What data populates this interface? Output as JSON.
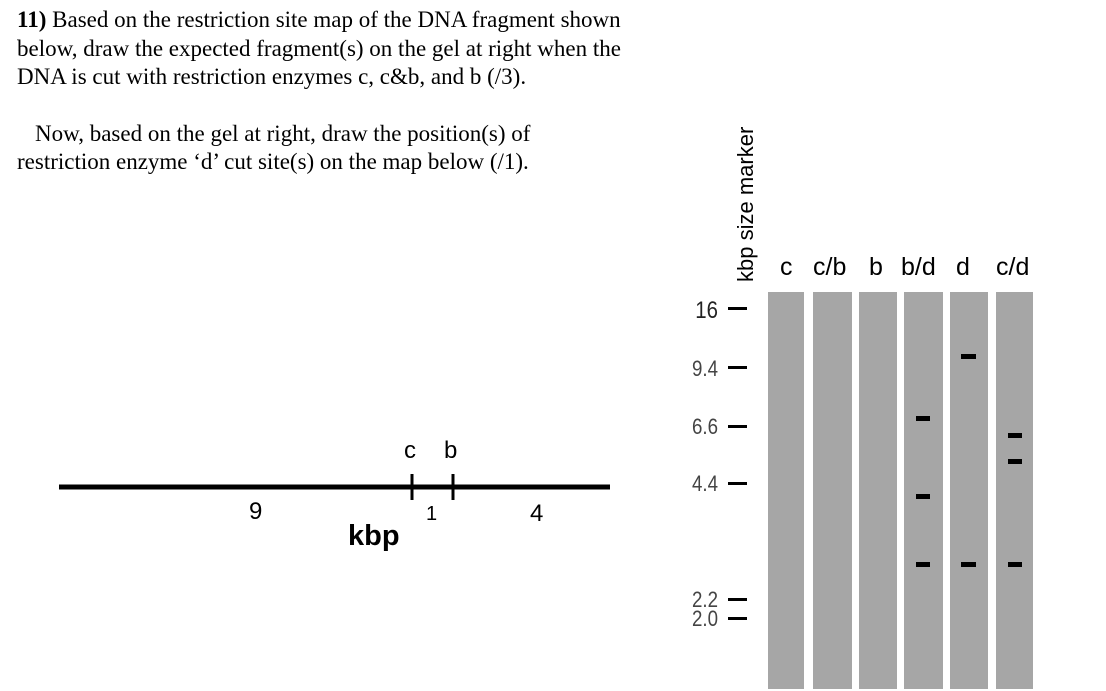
{
  "question": {
    "number": "11)",
    "text1": " Based on the restriction site map of the DNA fragment shown below, draw the expected fragment(s) on the gel at right when the DNA is cut with restriction enzymes c, c&b, and b (/3).",
    "text2": "Now, based on the gel at right, draw the position(s) of restriction enzyme ‘d’ cut site(s) on the map below (/1)."
  },
  "map": {
    "site_c": "c",
    "site_b": "b",
    "seg_left": "9",
    "seg_mid": "1",
    "seg_right": "4",
    "unit": "kbp"
  },
  "gel": {
    "marker_title": "kbp size marker",
    "lanes": [
      "c",
      "c/b",
      "b",
      "b/d",
      "d",
      "c/d"
    ],
    "marker_sizes": [
      "16",
      "9.4",
      "6.6",
      "4.4",
      "2.2",
      "2.0"
    ],
    "bands_kbp": {
      "b/d": [
        6.6,
        4.0,
        3.0
      ],
      "d": [
        9.4,
        3.0
      ],
      "c/d": [
        6.0,
        5.4,
        3.0
      ]
    },
    "colors": {
      "lane": "#a6a6a6",
      "band": "#000000"
    }
  }
}
